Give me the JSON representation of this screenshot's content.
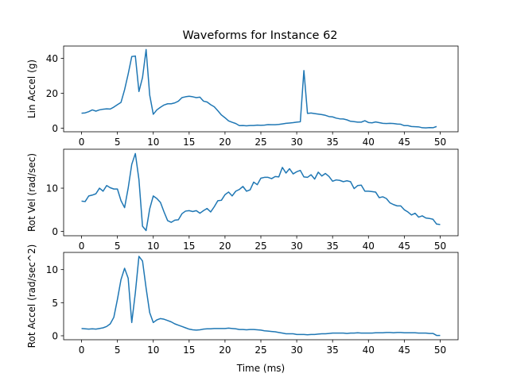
{
  "figure_title": "Waveforms for Instance 62",
  "colors": {
    "line": "#1f77b4",
    "axes": "#000000",
    "background": "#ffffff"
  },
  "chart_data": [
    {
      "type": "line",
      "ylabel": "Lin Accel (g)",
      "xlabel": "",
      "xlim": [
        -2.5,
        52.5
      ],
      "ylim": [
        -2,
        47
      ],
      "xticks": [
        0,
        5,
        10,
        15,
        20,
        25,
        30,
        35,
        40,
        45,
        50
      ],
      "xtick_labels": [
        "0",
        "5",
        "10",
        "15",
        "20",
        "25",
        "30",
        "35",
        "40",
        "45",
        "50"
      ],
      "yticks": [
        0,
        20,
        40
      ],
      "ytick_labels": [
        "0",
        "20",
        "40"
      ],
      "grid": false,
      "series": [
        {
          "x": [
            0,
            0.5,
            1,
            1.5,
            2,
            2.5,
            3,
            3.5,
            4,
            4.5,
            5,
            5.5,
            6,
            6.5,
            7,
            7.5,
            8,
            8.5,
            9,
            9.5,
            10,
            10.5,
            11,
            11.5,
            12,
            12.5,
            13,
            13.5,
            14,
            14.5,
            15,
            15.5,
            16,
            16.5,
            17,
            17.5,
            18,
            18.5,
            19,
            19.5,
            20,
            20.5,
            21,
            21.5,
            22,
            22.5,
            23,
            23.5,
            24,
            24.5,
            25,
            25.5,
            26,
            26.5,
            27,
            27.5,
            28,
            28.5,
            29,
            29.5,
            30,
            30.5,
            31,
            31.5,
            32,
            32.5,
            33,
            33.5,
            34,
            34.5,
            35,
            35.5,
            36,
            36.5,
            37,
            37.5,
            38,
            38.5,
            39,
            39.5,
            40,
            40.5,
            41,
            41.5,
            42,
            42.5,
            43,
            43.5,
            44,
            44.5,
            45,
            45.5,
            46,
            46.5,
            47,
            47.5,
            48,
            48.5,
            49,
            49.5
          ],
          "y": [
            8.6,
            8.8,
            9.5,
            10.5,
            9.8,
            10.5,
            10.9,
            11.1,
            11.0,
            12.1,
            13.5,
            14.8,
            22,
            31,
            41.0,
            41.3,
            21,
            29,
            45,
            19,
            8,
            10.5,
            12,
            13.3,
            14,
            14,
            14.5,
            15.5,
            17.5,
            18,
            18.3,
            18,
            17.5,
            17.8,
            15.5,
            15,
            13.5,
            12.3,
            10,
            7.6,
            6,
            4.2,
            3.4,
            2.7,
            1.5,
            1.6,
            1.4,
            1.6,
            1.6,
            1.8,
            1.7,
            1.8,
            2.1,
            2.0,
            2.0,
            2.2,
            2.5,
            2.8,
            3.0,
            3.2,
            3.5,
            3.7,
            33,
            8.5,
            8.7,
            8.4,
            8.1,
            7.8,
            7.4,
            6.7,
            6.5,
            5.8,
            5.4,
            5.3,
            4.8,
            4.0,
            3.8,
            3.5,
            3.5,
            4.3,
            3.3,
            3.1,
            3.6,
            3.2,
            2.8,
            2.7,
            2.8,
            2.7,
            2.4,
            2.3,
            1.5,
            1.5,
            1.0,
            0.9,
            0.8,
            0.3,
            0.2,
            0.4,
            0.3,
            1.0
          ]
        }
      ]
    },
    {
      "type": "line",
      "ylabel": "Rot Vel (rad/sec)",
      "xlabel": "",
      "xlim": [
        -2.5,
        52.5
      ],
      "ylim": [
        -1,
        19
      ],
      "xticks": [
        0,
        5,
        10,
        15,
        20,
        25,
        30,
        35,
        40,
        45,
        50
      ],
      "xtick_labels": [
        "0",
        "5",
        "10",
        "15",
        "20",
        "25",
        "30",
        "35",
        "40",
        "45",
        "50"
      ],
      "yticks": [
        0,
        10
      ],
      "ytick_labels": [
        "0",
        "10"
      ],
      "grid": false,
      "series": [
        {
          "x": [
            0,
            0.5,
            1,
            1.5,
            2,
            2.5,
            3,
            3.5,
            4,
            4.5,
            5,
            5.5,
            6,
            6.5,
            7,
            7.5,
            8,
            8.5,
            9,
            9.5,
            10,
            10.5,
            11,
            11.5,
            12,
            12.5,
            13,
            13.5,
            14,
            14.5,
            15,
            15.5,
            16,
            16.5,
            17,
            17.5,
            18,
            18.5,
            19,
            19.5,
            20,
            20.5,
            21,
            21.5,
            22,
            22.5,
            23,
            23.5,
            24,
            24.5,
            25,
            25.5,
            26,
            26.5,
            27,
            27.5,
            28,
            28.5,
            29,
            29.5,
            30,
            30.5,
            31,
            31.5,
            32,
            32.5,
            33,
            33.5,
            34,
            34.5,
            35,
            35.5,
            36,
            36.5,
            37,
            37.5,
            38,
            38.5,
            39,
            39.5,
            40,
            40.5,
            41,
            41.5,
            42,
            42.5,
            43,
            43.5,
            44,
            44.5,
            45,
            45.5,
            46,
            46.5,
            47,
            47.5,
            48,
            48.5,
            49,
            49.5,
            50
          ],
          "y": [
            7.0,
            6.9,
            8.2,
            8.4,
            8.7,
            10.0,
            9.3,
            10.6,
            10.1,
            9.8,
            9.8,
            7.1,
            5.5,
            10,
            15.5,
            18.0,
            12,
            1.2,
            0.2,
            5.2,
            8.2,
            7.6,
            6.7,
            4.5,
            2.5,
            2.1,
            2.6,
            2.7,
            4.1,
            4.7,
            4.8,
            4.6,
            4.8,
            4.2,
            4.8,
            5.3,
            4.5,
            5.7,
            7.1,
            7.2,
            8.5,
            9.1,
            8.2,
            9.3,
            9.7,
            10.4,
            9.3,
            9.6,
            11.4,
            10.8,
            12.3,
            12.5,
            12.5,
            12.2,
            12.7,
            12.6,
            14.8,
            13.5,
            14.5,
            13.3,
            13.8,
            14.1,
            12.6,
            12.5,
            13.1,
            12.1,
            13.7,
            12.8,
            13.4,
            12.7,
            11.6,
            11.9,
            11.8,
            11.5,
            11.7,
            11.5,
            9.9,
            10.6,
            10.7,
            9.3,
            9.3,
            9.2,
            9.1,
            7.8,
            8.0,
            7.6,
            6.6,
            6.2,
            5.9,
            5.9,
            5.0,
            4.5,
            3.8,
            4.2,
            3.3,
            3.6,
            3.1,
            3.0,
            2.8,
            1.7,
            1.6
          ]
        }
      ]
    },
    {
      "type": "line",
      "ylabel": "Rot Accel (rad/sec^2)",
      "xlabel": "Time (ms)",
      "xlim": [
        -2.5,
        52.5
      ],
      "ylim": [
        -0.6,
        12.6
      ],
      "xticks": [
        0,
        5,
        10,
        15,
        20,
        25,
        30,
        35,
        40,
        45,
        50
      ],
      "xtick_labels": [
        "0",
        "5",
        "10",
        "15",
        "20",
        "25",
        "30",
        "35",
        "40",
        "45",
        "50"
      ],
      "yticks": [
        0,
        5,
        10
      ],
      "ytick_labels": [
        "0",
        "5",
        "10"
      ],
      "grid": false,
      "series": [
        {
          "x": [
            0,
            0.5,
            1,
            1.5,
            2,
            2.5,
            3,
            3.5,
            4,
            4.5,
            5,
            5.5,
            6,
            6.5,
            7,
            7.5,
            8,
            8.5,
            9,
            9.5,
            10,
            10.5,
            11,
            11.5,
            12,
            12.5,
            13,
            13.5,
            14,
            14.5,
            15,
            15.5,
            16,
            16.5,
            17,
            17.5,
            18,
            18.5,
            19,
            19.5,
            20,
            20.5,
            21,
            21.5,
            22,
            22.5,
            23,
            23.5,
            24,
            24.5,
            25,
            25.5,
            26,
            26.5,
            27,
            27.5,
            28,
            28.5,
            29,
            29.5,
            30,
            30.5,
            31,
            31.5,
            32,
            32.5,
            33,
            33.5,
            34,
            34.5,
            35,
            35.5,
            36,
            36.5,
            37,
            37.5,
            38,
            38.5,
            39,
            39.5,
            40,
            40.5,
            41,
            41.5,
            42,
            42.5,
            43,
            43.5,
            44,
            44.5,
            45,
            45.5,
            46,
            46.5,
            47,
            47.5,
            48,
            48.5,
            49,
            49.5,
            50
          ],
          "y": [
            1.1,
            1.05,
            1.0,
            1.05,
            1.0,
            1.1,
            1.2,
            1.4,
            1.8,
            2.8,
            5.5,
            8.5,
            10.2,
            8.7,
            2.0,
            6.5,
            12.0,
            11.3,
            7.2,
            3.5,
            2.0,
            2.4,
            2.6,
            2.5,
            2.3,
            2.1,
            1.8,
            1.6,
            1.4,
            1.2,
            1.0,
            0.9,
            0.85,
            0.9,
            1.0,
            1.05,
            1.05,
            1.1,
            1.1,
            1.1,
            1.1,
            1.15,
            1.1,
            1.05,
            0.95,
            0.95,
            0.9,
            0.95,
            0.95,
            0.9,
            0.85,
            0.75,
            0.7,
            0.65,
            0.6,
            0.5,
            0.4,
            0.3,
            0.3,
            0.3,
            0.2,
            0.2,
            0.2,
            0.15,
            0.2,
            0.2,
            0.25,
            0.3,
            0.3,
            0.35,
            0.4,
            0.4,
            0.4,
            0.4,
            0.35,
            0.4,
            0.4,
            0.45,
            0.4,
            0.4,
            0.4,
            0.4,
            0.45,
            0.45,
            0.45,
            0.5,
            0.5,
            0.45,
            0.5,
            0.5,
            0.45,
            0.45,
            0.45,
            0.45,
            0.4,
            0.4,
            0.4,
            0.35,
            0.35,
            0.05,
            0.05
          ]
        }
      ]
    }
  ]
}
